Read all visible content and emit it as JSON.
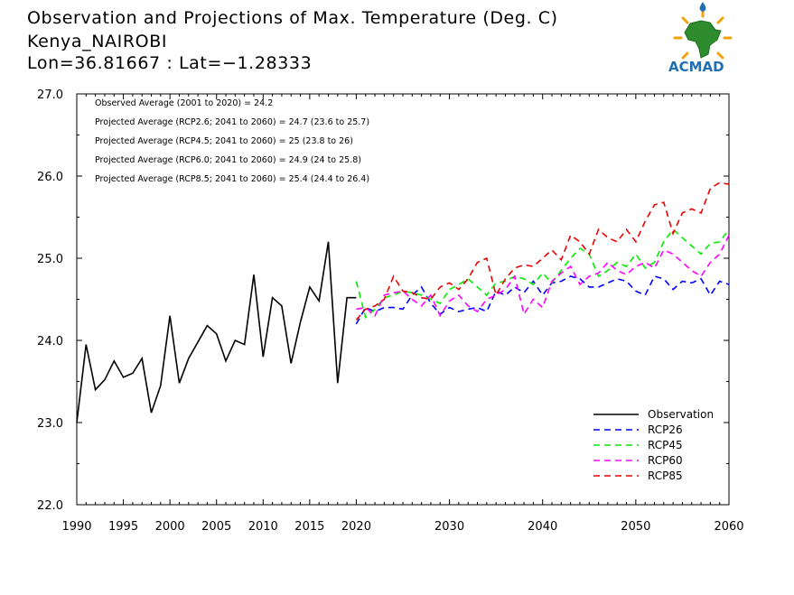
{
  "title_lines": [
    "Observation and Projections of Max. Temperature (Deg. C)",
    "Kenya_NAIROBI",
    "Lon=36.81667 : Lat=−1.28333"
  ],
  "logo": {
    "text": "ACMAD",
    "icon": "acmad-africa-logo-icon"
  },
  "annotations": [
    "Observed Average (2001 to 2020) = 24.2",
    "Projected Average (RCP2.6; 2041 to 2060) = 24.7 (23.6 to 25.7)",
    "Projected Average (RCP4.5; 2041 to 2060) = 25 (23.8 to 26)",
    "Projected Average (RCP6.0; 2041 to 2060) = 24.9 (24 to 25.8)",
    "Projected Average (RCP8.5; 2041 to 2060) = 25.4 (24.4 to 26.4)"
  ],
  "chart_data": {
    "type": "line",
    "title": "Observation and Projections of Max. Temperature (Deg. C)",
    "xlabel": "",
    "ylabel": "",
    "xlim": [
      1990,
      2060
    ],
    "ylim": [
      22.0,
      27.0
    ],
    "x_ticks": [
      1990,
      1995,
      2000,
      2005,
      2010,
      2015,
      2020,
      2030,
      2040,
      2050,
      2060
    ],
    "y_ticks": [
      22.0,
      23.0,
      24.0,
      25.0,
      26.0,
      27.0
    ],
    "y_tick_labels": [
      "22.0",
      "23.0",
      "24.0",
      "25.0",
      "26.0",
      "27.0"
    ],
    "legend_placement": "bottom-right",
    "grid": false,
    "series": [
      {
        "name": "Observation",
        "color": "#000000",
        "dash": "solid",
        "x": [
          1990,
          1991,
          1992,
          1993,
          1994,
          1995,
          1996,
          1997,
          1998,
          1999,
          2000,
          2001,
          2002,
          2003,
          2004,
          2005,
          2006,
          2007,
          2008,
          2009,
          2010,
          2011,
          2012,
          2013,
          2014,
          2015,
          2016,
          2017,
          2018,
          2019,
          2020
        ],
        "values": [
          23.0,
          23.95,
          23.4,
          23.52,
          23.75,
          23.55,
          23.6,
          23.78,
          23.12,
          23.45,
          24.3,
          23.48,
          23.78,
          23.98,
          24.18,
          24.08,
          23.75,
          24.0,
          23.95,
          24.8,
          23.8,
          24.52,
          24.42,
          23.72,
          24.22,
          24.65,
          24.48,
          25.2,
          23.48,
          24.52,
          24.52
        ]
      },
      {
        "name": "RCP26",
        "color": "#0000ff",
        "dash": "dashed",
        "x": [
          2020,
          2021,
          2022,
          2023,
          2024,
          2025,
          2026,
          2027,
          2028,
          2029,
          2030,
          2031,
          2032,
          2033,
          2034,
          2035,
          2036,
          2037,
          2038,
          2039,
          2040,
          2041,
          2042,
          2043,
          2044,
          2045,
          2046,
          2047,
          2048,
          2049,
          2050,
          2051,
          2052,
          2053,
          2054,
          2055,
          2056,
          2057,
          2058,
          2059,
          2060
        ],
        "values": [
          24.2,
          24.4,
          24.35,
          24.4,
          24.4,
          24.38,
          24.55,
          24.65,
          24.45,
          24.32,
          24.4,
          24.35,
          24.38,
          24.4,
          24.35,
          24.6,
          24.55,
          24.65,
          24.58,
          24.72,
          24.55,
          24.7,
          24.72,
          24.78,
          24.75,
          24.65,
          24.65,
          24.7,
          24.75,
          24.72,
          24.6,
          24.55,
          24.78,
          24.75,
          24.62,
          24.72,
          24.7,
          24.75,
          24.55,
          24.72,
          24.68
        ]
      },
      {
        "name": "RCP45",
        "color": "#00ee00",
        "dash": "dashed",
        "x": [
          2020,
          2021,
          2022,
          2023,
          2024,
          2025,
          2026,
          2027,
          2028,
          2029,
          2030,
          2031,
          2032,
          2033,
          2034,
          2035,
          2036,
          2037,
          2038,
          2039,
          2040,
          2041,
          2042,
          2043,
          2044,
          2045,
          2046,
          2047,
          2048,
          2049,
          2050,
          2051,
          2052,
          2053,
          2054,
          2055,
          2056,
          2057,
          2058,
          2059,
          2060
        ],
        "values": [
          24.72,
          24.28,
          24.38,
          24.52,
          24.55,
          24.6,
          24.58,
          24.55,
          24.5,
          24.45,
          24.62,
          24.68,
          24.75,
          24.65,
          24.55,
          24.7,
          24.72,
          24.78,
          24.75,
          24.68,
          24.82,
          24.7,
          24.85,
          25.0,
          25.12,
          25.05,
          24.78,
          24.85,
          24.95,
          24.9,
          25.05,
          24.88,
          24.95,
          25.2,
          25.35,
          25.25,
          25.15,
          25.05,
          25.18,
          25.2,
          25.35
        ]
      },
      {
        "name": "RCP60",
        "color": "#ff00ff",
        "dash": "dashed",
        "x": [
          2020,
          2021,
          2022,
          2023,
          2024,
          2025,
          2026,
          2027,
          2028,
          2029,
          2030,
          2031,
          2032,
          2033,
          2034,
          2035,
          2036,
          2037,
          2038,
          2039,
          2040,
          2041,
          2042,
          2043,
          2044,
          2045,
          2046,
          2047,
          2048,
          2049,
          2050,
          2051,
          2052,
          2053,
          2054,
          2055,
          2056,
          2057,
          2058,
          2059,
          2060
        ],
        "values": [
          24.38,
          24.4,
          24.3,
          24.55,
          24.58,
          24.6,
          24.5,
          24.42,
          24.55,
          24.3,
          24.48,
          24.55,
          24.42,
          24.35,
          24.5,
          24.55,
          24.62,
          24.78,
          24.32,
          24.5,
          24.4,
          24.72,
          24.82,
          24.9,
          24.68,
          24.78,
          24.82,
          24.95,
          24.85,
          24.8,
          24.9,
          24.95,
          24.88,
          25.1,
          25.05,
          24.95,
          24.85,
          24.78,
          24.95,
          25.05,
          25.28
        ]
      },
      {
        "name": "RCP85",
        "color": "#ee0000",
        "dash": "dashed",
        "x": [
          2020,
          2021,
          2022,
          2023,
          2024,
          2025,
          2026,
          2027,
          2028,
          2029,
          2030,
          2031,
          2032,
          2033,
          2034,
          2035,
          2036,
          2037,
          2038,
          2039,
          2040,
          2041,
          2042,
          2043,
          2044,
          2045,
          2046,
          2047,
          2048,
          2049,
          2050,
          2051,
          2052,
          2053,
          2054,
          2055,
          2056,
          2057,
          2058,
          2059,
          2060
        ],
        "values": [
          24.25,
          24.38,
          24.42,
          24.5,
          24.78,
          24.6,
          24.58,
          24.52,
          24.5,
          24.65,
          24.7,
          24.62,
          24.75,
          24.95,
          25.0,
          24.55,
          24.75,
          24.88,
          24.92,
          24.9,
          25.0,
          25.1,
          24.98,
          25.28,
          25.2,
          25.05,
          25.35,
          25.25,
          25.2,
          25.35,
          25.2,
          25.45,
          25.65,
          25.68,
          25.3,
          25.55,
          25.6,
          25.55,
          25.85,
          25.92,
          25.9
        ]
      }
    ]
  }
}
